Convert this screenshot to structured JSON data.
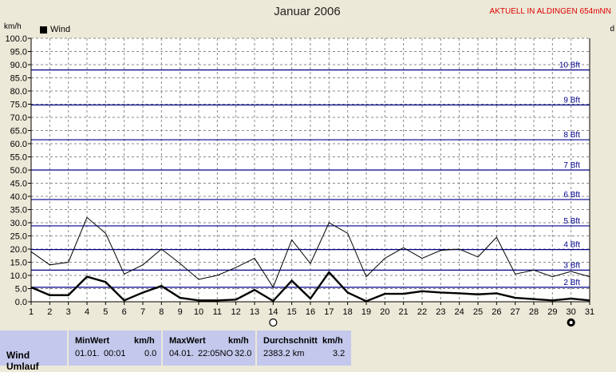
{
  "header": {
    "title": "Januar 2006",
    "badge": "AKTUELL IN ALDINGEN 654mNN",
    "unit_left": "km/h",
    "unit_right": "d"
  },
  "legend": {
    "label": "Wind"
  },
  "colors": {
    "plot_bg": "#ffffff",
    "grid": "#888888",
    "beaufort": "#00008b",
    "series_avg": "#000000",
    "series_gust": "#000000",
    "table_bg": "#c4c8ec"
  },
  "chart_data": {
    "type": "line",
    "xlabel": "",
    "ylabel": "km/h",
    "xlim": [
      1,
      31
    ],
    "ylim": [
      0,
      100
    ],
    "x": [
      1,
      2,
      3,
      4,
      5,
      6,
      7,
      8,
      9,
      10,
      11,
      12,
      13,
      14,
      15,
      16,
      17,
      18,
      19,
      20,
      21,
      22,
      23,
      24,
      25,
      26,
      27,
      28,
      29,
      30,
      31
    ],
    "x_ticks": [
      "1",
      "2",
      "3",
      "4",
      "5",
      "6",
      "7",
      "8",
      "9",
      "10",
      "11",
      "12",
      "13",
      "14",
      "15",
      "16",
      "17",
      "18",
      "19",
      "20",
      "21",
      "22",
      "23",
      "24",
      "25",
      "26",
      "27",
      "28",
      "29",
      "30",
      "31"
    ],
    "y_ticks": [
      "0.0",
      "5.0",
      "10.0",
      "15.0",
      "20.0",
      "25.0",
      "30.0",
      "35.0",
      "40.0",
      "45.0",
      "50.0",
      "55.0",
      "60.0",
      "65.0",
      "70.0",
      "75.0",
      "80.0",
      "85.0",
      "90.0",
      "95.0",
      "100.0"
    ],
    "y_tick_values": [
      0,
      5,
      10,
      15,
      20,
      25,
      30,
      35,
      40,
      45,
      50,
      55,
      60,
      65,
      70,
      75,
      80,
      85,
      90,
      95,
      100
    ],
    "series": [
      {
        "name": "Wind",
        "style": "thick",
        "values": [
          5.5,
          2.5,
          2.5,
          9.5,
          7.5,
          0.5,
          3.5,
          6.0,
          1.5,
          0.5,
          0.5,
          0.8,
          4.5,
          0.3,
          8.0,
          1.2,
          11.2,
          3.5,
          0.2,
          3.0,
          3.0,
          4.0,
          3.5,
          3.2,
          2.8,
          3.2,
          1.5,
          1.0,
          0.5,
          1.2,
          0.5
        ]
      },
      {
        "style": "thin",
        "values": [
          19.0,
          14.0,
          15.0,
          32.0,
          26.0,
          10.5,
          14.0,
          20.0,
          14.5,
          8.5,
          10.0,
          13.0,
          16.5,
          5.5,
          23.5,
          14.5,
          30.0,
          26.0,
          9.5,
          16.5,
          20.5,
          16.5,
          19.5,
          20.0,
          17.0,
          24.5,
          10.5,
          12.0,
          9.5,
          11.5,
          9.5
        ]
      }
    ],
    "beaufort_lines": [
      {
        "label": "2 Bft",
        "value": 5.5
      },
      {
        "label": "3 Bft",
        "value": 12.0
      },
      {
        "label": "4 Bft",
        "value": 19.8
      },
      {
        "label": "5 Bft",
        "value": 28.8
      },
      {
        "label": "6 Bft",
        "value": 38.8
      },
      {
        "label": "7 Bft",
        "value": 50.0
      },
      {
        "label": "8 Bft",
        "value": 61.5
      },
      {
        "label": "9 Bft",
        "value": 74.7
      },
      {
        "label": "10 Bft",
        "value": 88.0
      }
    ],
    "moon_markers": [
      {
        "day": 14,
        "phase": "full"
      },
      {
        "day": 30,
        "phase": "new"
      }
    ],
    "grid": true
  },
  "table": {
    "row_label": "Wind",
    "row_label_next": "Umlauf",
    "columns": [
      {
        "title": "MinWert",
        "unit": "km/h",
        "date": "01.01.",
        "time": "00:01",
        "value": "0.0"
      },
      {
        "title": "MaxWert",
        "unit": "km/h",
        "date": "04.01.",
        "time": "22:05NO",
        "value": "32.0"
      },
      {
        "title": "Durchschnitt",
        "unit": "km/h",
        "date": "2383.2 km",
        "time": "",
        "value": "3.2"
      }
    ]
  }
}
